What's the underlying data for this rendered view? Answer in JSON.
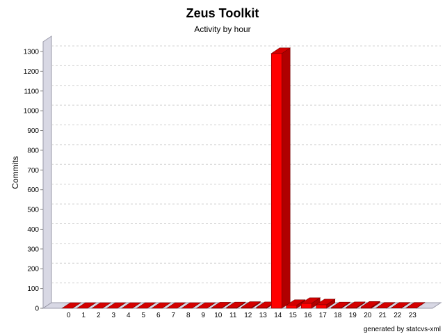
{
  "chart_data": {
    "type": "bar",
    "title": "Zeus Toolkit",
    "subtitle": "Activity by hour",
    "xlabel": "",
    "ylabel": "Commits",
    "footer": "generated by statcvs-xml",
    "categories": [
      "0",
      "1",
      "2",
      "3",
      "4",
      "5",
      "6",
      "7",
      "8",
      "9",
      "10",
      "11",
      "12",
      "13",
      "14",
      "15",
      "16",
      "17",
      "18",
      "19",
      "20",
      "21",
      "22",
      "23"
    ],
    "values": [
      0,
      0,
      0,
      0,
      0,
      0,
      0,
      0,
      0,
      0,
      2,
      3,
      5,
      4,
      1290,
      15,
      25,
      18,
      3,
      4,
      6,
      1,
      1,
      1
    ],
    "ylim": [
      0,
      1300
    ],
    "yticks": [
      0,
      100,
      200,
      300,
      400,
      500,
      600,
      700,
      800,
      900,
      1000,
      1100,
      1200,
      1300
    ],
    "grid": true,
    "bar_color": "#ff0000",
    "bar_side_color": "#b00000",
    "bar_top_color": "#d40000"
  }
}
